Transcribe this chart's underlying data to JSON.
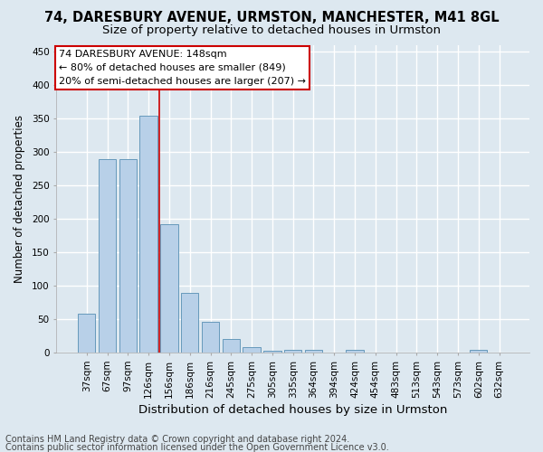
{
  "title1": "74, DARESBURY AVENUE, URMSTON, MANCHESTER, M41 8GL",
  "title2": "Size of property relative to detached houses in Urmston",
  "xlabel": "Distribution of detached houses by size in Urmston",
  "ylabel": "Number of detached properties",
  "categories": [
    "37sqm",
    "67sqm",
    "97sqm",
    "126sqm",
    "156sqm",
    "186sqm",
    "216sqm",
    "245sqm",
    "275sqm",
    "305sqm",
    "335sqm",
    "364sqm",
    "394sqm",
    "424sqm",
    "454sqm",
    "483sqm",
    "513sqm",
    "543sqm",
    "573sqm",
    "602sqm",
    "632sqm"
  ],
  "values": [
    58,
    290,
    290,
    355,
    192,
    90,
    47,
    21,
    9,
    3,
    5,
    4,
    0,
    5,
    0,
    0,
    0,
    0,
    0,
    4,
    0
  ],
  "bar_color": "#b8d0e8",
  "bar_edge_color": "#6699bb",
  "redline_index": 3.5,
  "redline_color": "#cc0000",
  "annotation_line1": "74 DARESBURY AVENUE: 148sqm",
  "annotation_line2": "← 80% of detached houses are smaller (849)",
  "annotation_line3": "20% of semi-detached houses are larger (207) →",
  "annotation_box_color": "white",
  "annotation_box_edge_color": "#cc0000",
  "footer1": "Contains HM Land Registry data © Crown copyright and database right 2024.",
  "footer2": "Contains public sector information licensed under the Open Government Licence v3.0.",
  "bg_color": "#dde8f0",
  "plot_bg_color": "#dde8f0",
  "ylim": [
    0,
    460
  ],
  "yticks": [
    0,
    50,
    100,
    150,
    200,
    250,
    300,
    350,
    400,
    450
  ],
  "title1_fontsize": 10.5,
  "title2_fontsize": 9.5,
  "xlabel_fontsize": 9.5,
  "ylabel_fontsize": 8.5,
  "tick_fontsize": 7.5,
  "annotation_fontsize": 8,
  "footer_fontsize": 7,
  "grid_color": "#ffffff",
  "grid_linewidth": 1.0
}
